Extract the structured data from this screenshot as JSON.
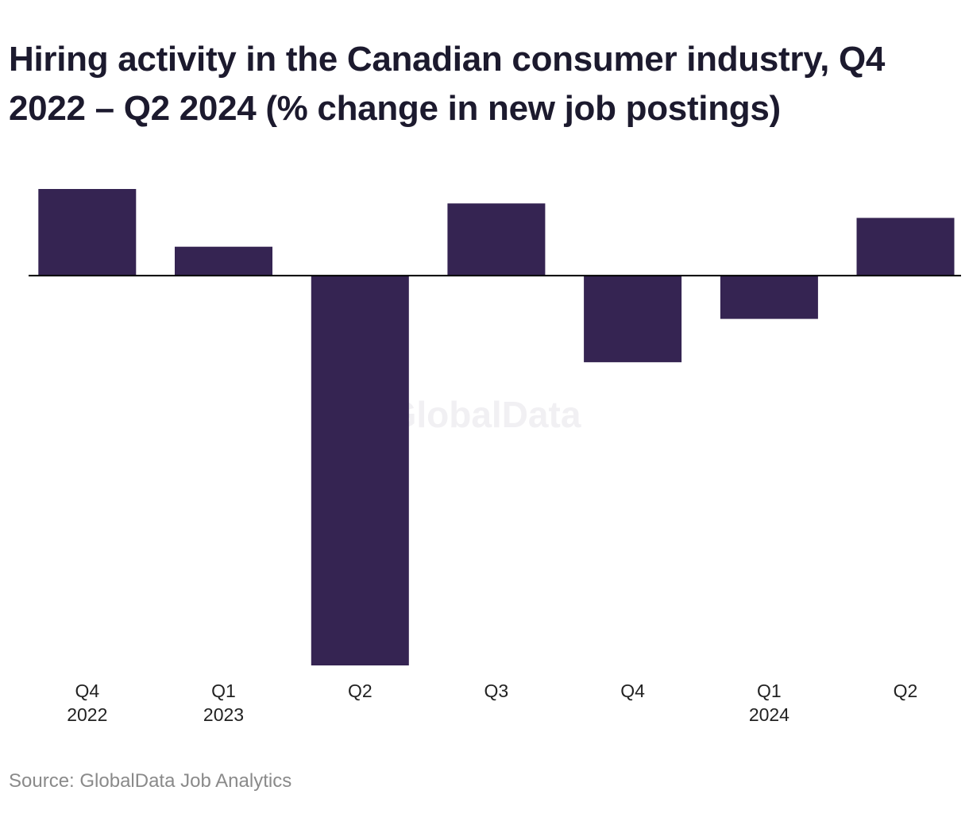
{
  "title": "Hiring activity in the Canadian consumer industry, Q4 2022 – Q2 2024 (% change in new job postings)",
  "source": "Source: GlobalData Job Analytics",
  "watermark": "GlobalData",
  "colors": {
    "bar": "#352452",
    "baseline": "#000000",
    "title": "#1c1a2e",
    "source": "#8a8a8a"
  },
  "chart_data": {
    "type": "bar",
    "title": "Hiring activity in the Canadian consumer industry, Q4 2022 – Q2 2024 (% change in new job postings)",
    "xlabel": "",
    "ylabel": "",
    "grid": false,
    "legend": "none",
    "categories": [
      {
        "quarter": "Q4",
        "year": "2022"
      },
      {
        "quarter": "Q1",
        "year": "2023"
      },
      {
        "quarter": "Q2",
        "year": ""
      },
      {
        "quarter": "Q3",
        "year": ""
      },
      {
        "quarter": "Q4",
        "year": ""
      },
      {
        "quarter": "Q1",
        "year": "2024"
      },
      {
        "quarter": "Q2",
        "year": ""
      }
    ],
    "values": [
      12,
      4,
      -54,
      10,
      -12,
      -6,
      8
    ],
    "ylim": [
      -54,
      12
    ]
  }
}
